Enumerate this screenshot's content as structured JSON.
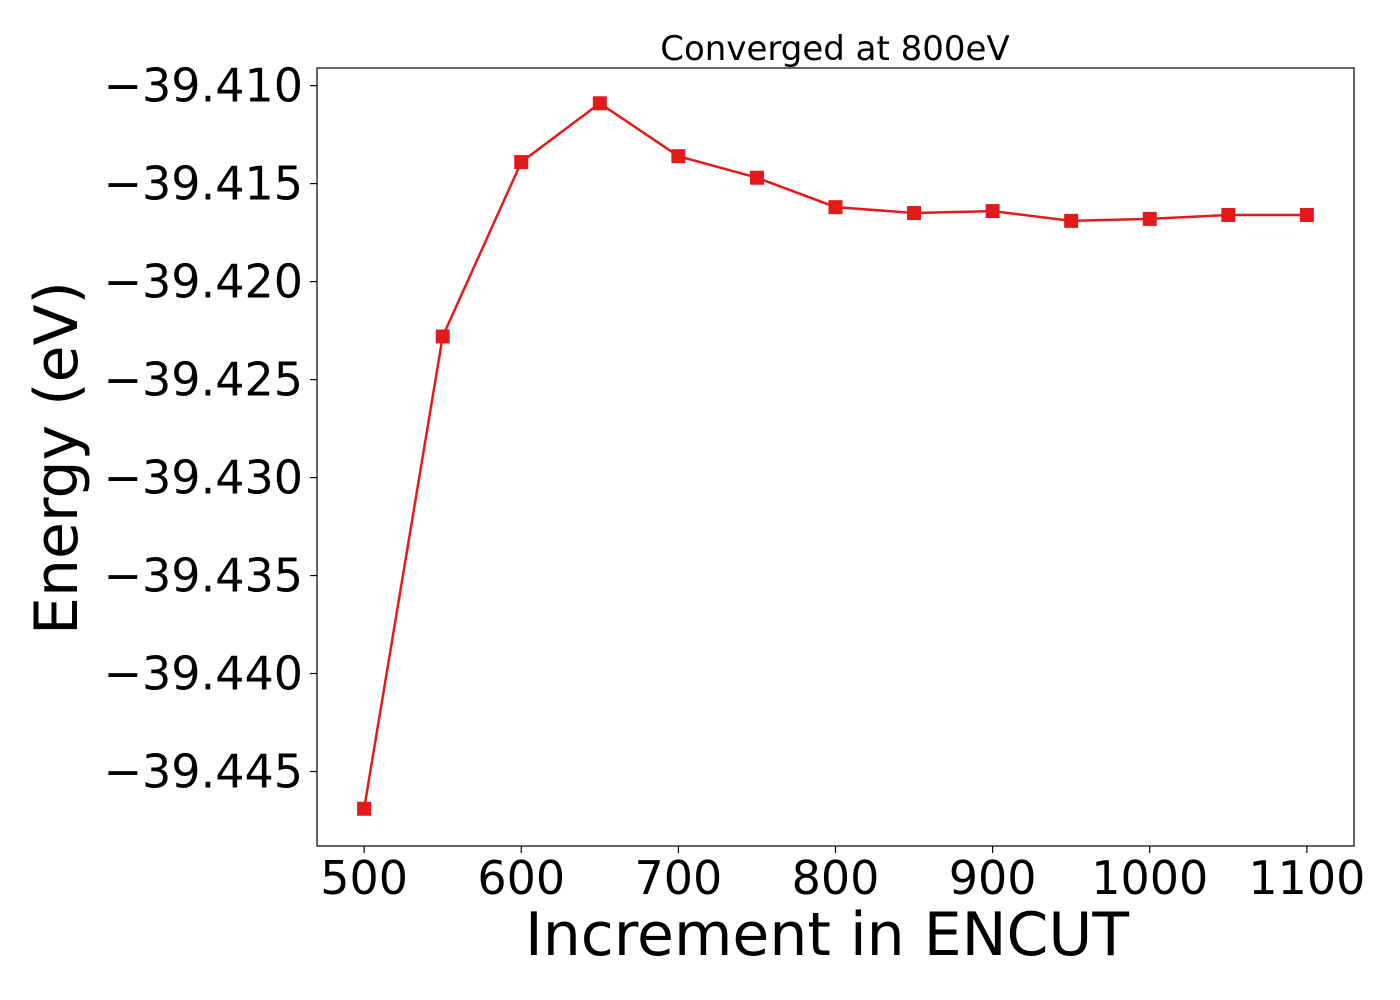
{
  "chart_data": {
    "type": "line",
    "title": "Converged at 800eV",
    "xlabel": "Increment in ENCUT",
    "ylabel": "Energy (eV)",
    "xlim": [
      470,
      1130
    ],
    "ylim": [
      -39.4488,
      -39.4091
    ],
    "xticks": [
      500,
      600,
      700,
      800,
      900,
      1000,
      1100
    ],
    "xtick_labels": [
      "500",
      "600",
      "700",
      "800",
      "900",
      "1000",
      "1100"
    ],
    "yticks": [
      -39.41,
      -39.415,
      -39.42,
      -39.425,
      -39.43,
      -39.435,
      -39.44,
      -39.445
    ],
    "ytick_labels": [
      "−39.410",
      "−39.415",
      "−39.420",
      "−39.425",
      "−39.430",
      "−39.435",
      "−39.440",
      "−39.445"
    ],
    "grid": false,
    "series": [
      {
        "color": "#e31a1c",
        "marker": "square",
        "x": [
          500,
          550,
          600,
          650,
          700,
          750,
          800,
          850,
          900,
          950,
          1000,
          1050,
          1100
        ],
        "y": [
          -39.4469,
          -39.4228,
          -39.4139,
          -39.4109,
          -39.4136,
          -39.4147,
          -39.4162,
          -39.4165,
          -39.4164,
          -39.4169,
          -39.4168,
          -39.4166,
          -39.4166
        ]
      }
    ]
  }
}
